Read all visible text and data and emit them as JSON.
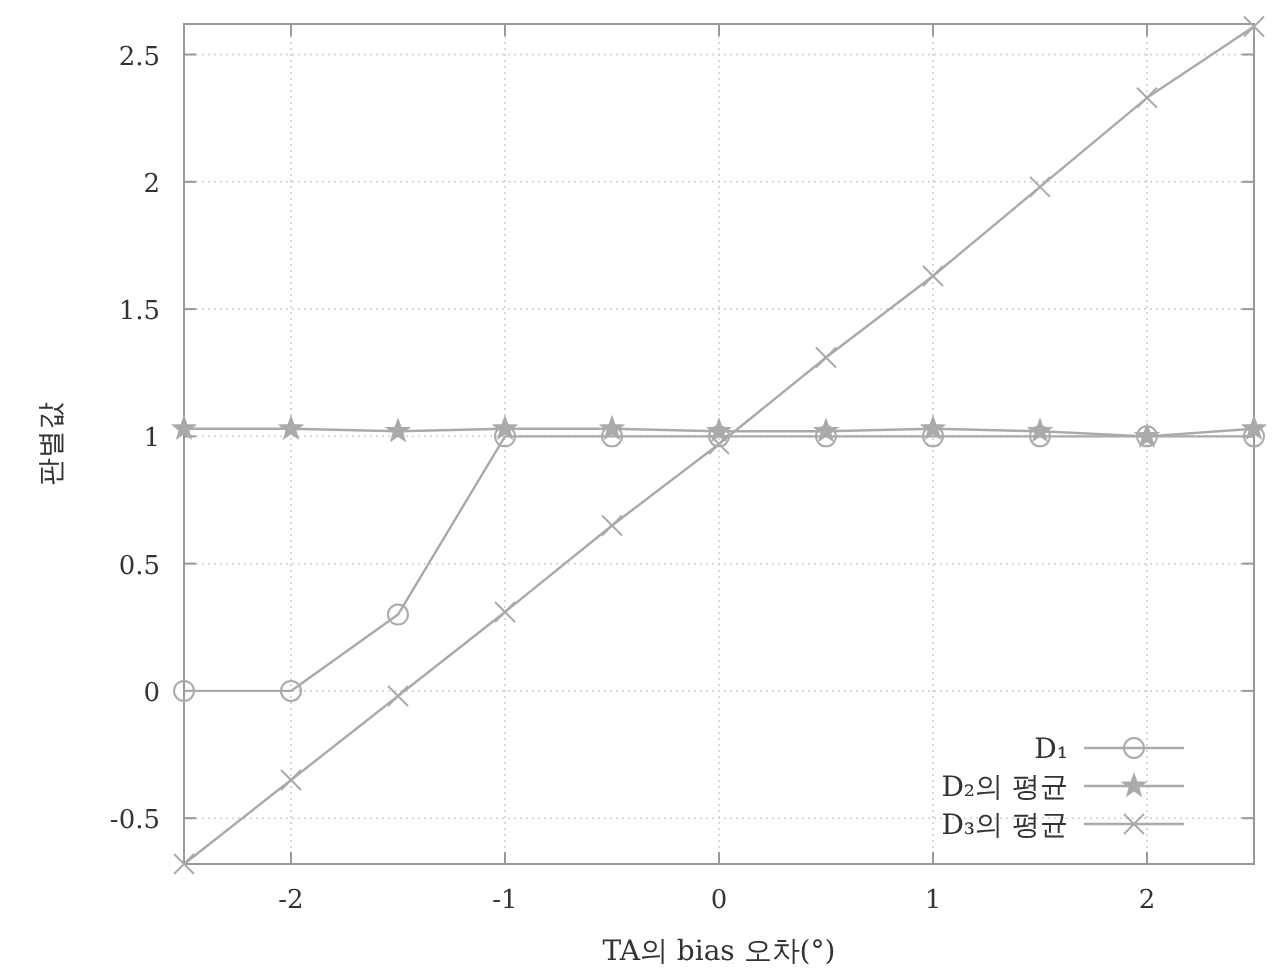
{
  "chart_data": {
    "type": "line",
    "xlabel": "TA의 bias 오차(°)",
    "ylabel": "판별값",
    "x": [
      -2.5,
      -2,
      -1.5,
      -1,
      -0.5,
      0,
      0.5,
      1,
      1.5,
      2,
      2.5
    ],
    "series": [
      {
        "name": "D₁",
        "color": "#aaaaaa",
        "marker": "circle",
        "values": [
          0,
          0,
          0.3,
          1,
          1,
          1,
          1,
          1,
          1,
          1,
          1
        ]
      },
      {
        "name": "D₂의 평균",
        "color": "#aaaaaa",
        "marker": "star",
        "values": [
          1.03,
          1.03,
          1.02,
          1.03,
          1.03,
          1.02,
          1.02,
          1.03,
          1.02,
          1.0,
          1.03
        ]
      },
      {
        "name": "D₃의 평균",
        "color": "#aaaaaa",
        "marker": "cross",
        "values": [
          -0.68,
          -0.35,
          -0.02,
          0.31,
          0.65,
          0.97,
          1.31,
          1.63,
          1.98,
          2.33,
          2.61
        ]
      }
    ],
    "xlim": [
      -2.5,
      2.5
    ],
    "ylim": [
      -0.68,
      2.62
    ],
    "xticks": [
      -2,
      -1,
      0,
      1,
      2
    ],
    "yticks": [
      -0.5,
      0,
      0.5,
      1,
      1.5,
      2,
      2.5
    ],
    "grid": true,
    "legend": "bottom right",
    "line_style": "solid"
  }
}
